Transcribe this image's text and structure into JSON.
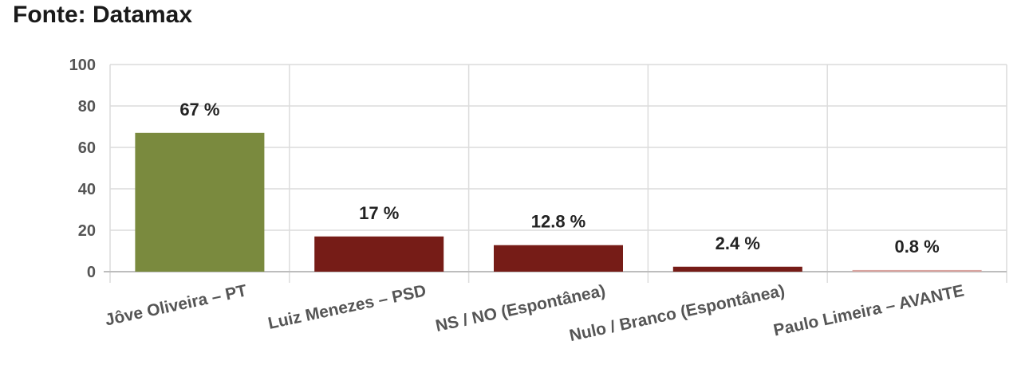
{
  "header": {
    "title": "Fonte: Datamax"
  },
  "chart_data": {
    "type": "bar",
    "title": "",
    "xlabel": "",
    "ylabel": "",
    "ylim": [
      0,
      100
    ],
    "yticks": [
      0,
      20,
      40,
      60,
      80,
      100
    ],
    "grid": true,
    "legend": "none",
    "categories": [
      "Jôve Oliveira – PT",
      "Luiz Menezes – PSD",
      "NS / NO (Espontânea)",
      "Nulo / Branco (Espontânea)",
      "Paulo Limeira – AVANTE"
    ],
    "values": [
      67,
      17,
      12.8,
      2.4,
      0.8
    ],
    "data_labels": [
      "67 %",
      "17 %",
      "12.8 %",
      "2.4 %",
      "0.8 %"
    ],
    "colors": [
      "#7a8a3e",
      "#761c17",
      "#761c17",
      "#761c17",
      "#d9a4a0"
    ]
  }
}
